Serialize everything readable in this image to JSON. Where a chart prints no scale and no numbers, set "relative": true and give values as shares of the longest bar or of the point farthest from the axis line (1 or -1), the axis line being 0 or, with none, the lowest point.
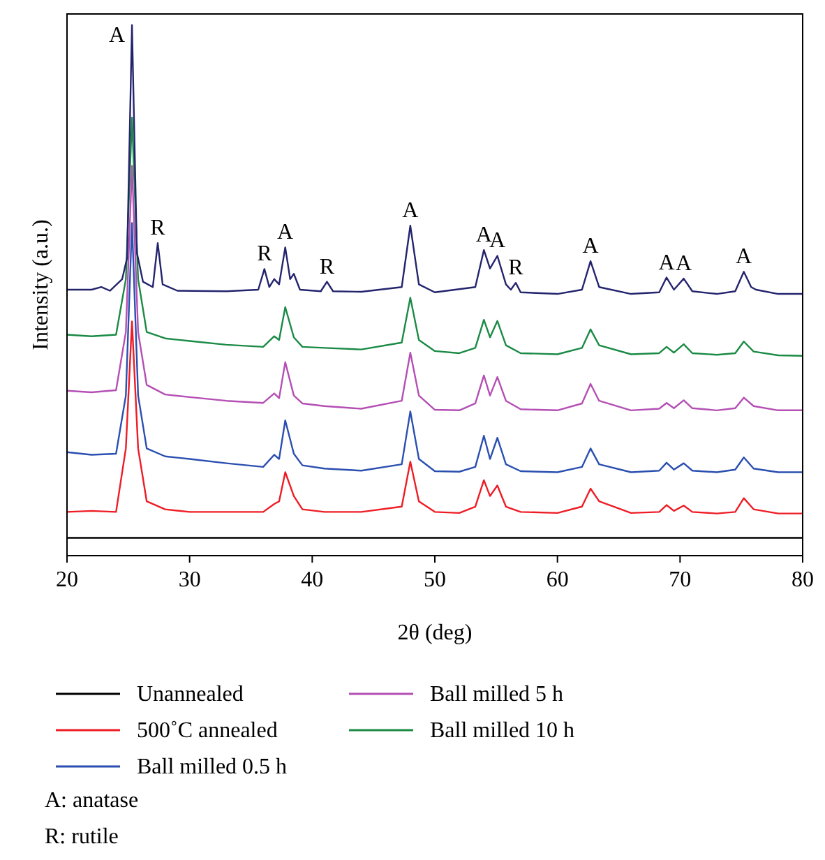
{
  "chart_data": {
    "type": "line",
    "relative": true,
    "xlabel": "2θ (deg)",
    "ylabel": "Intensity (a.u.)",
    "xlim": [
      20,
      80
    ],
    "xticks": [
      20,
      30,
      40,
      50,
      60,
      70,
      80
    ],
    "legend": "bottom",
    "marker": "none",
    "line_style": "solid",
    "grid": false,
    "x": [
      20,
      22,
      24,
      24.8,
      25.3,
      25.8,
      26.5,
      28,
      30,
      33,
      36,
      36.9,
      37.3,
      37.8,
      38.5,
      39.2,
      41,
      44,
      47.3,
      48.0,
      48.7,
      50,
      52,
      53.3,
      54.0,
      54.5,
      55.1,
      55.8,
      57,
      60,
      62.0,
      62.7,
      63.4,
      66,
      68.3,
      68.9,
      69.5,
      70.3,
      71,
      73,
      74.5,
      75.2,
      76,
      78,
      80
    ],
    "series": [
      {
        "name": "Unannealed",
        "color": "#000000",
        "x": [
          20,
          40,
          60,
          80
        ],
        "values": [
          0.031,
          0.031,
          0.031,
          0.031
        ]
      },
      {
        "name": "500˚C annealed",
        "color": "#ee1c25",
        "values": [
          0.08,
          0.082,
          0.08,
          0.2,
          0.44,
          0.2,
          0.1,
          0.085,
          0.08,
          0.08,
          0.08,
          0.095,
          0.1,
          0.155,
          0.11,
          0.085,
          0.08,
          0.08,
          0.09,
          0.175,
          0.1,
          0.08,
          0.078,
          0.09,
          0.14,
          0.11,
          0.13,
          0.09,
          0.08,
          0.078,
          0.09,
          0.124,
          0.1,
          0.078,
          0.08,
          0.093,
          0.082,
          0.092,
          0.08,
          0.077,
          0.08,
          0.106,
          0.085,
          0.077,
          0.077
        ]
      },
      {
        "name": "Ball milled 0.5 h",
        "color": "#2b4fb0",
        "values": [
          0.193,
          0.188,
          0.19,
          0.3,
          0.626,
          0.3,
          0.2,
          0.185,
          0.18,
          0.172,
          0.165,
          0.188,
          0.18,
          0.253,
          0.19,
          0.168,
          0.162,
          0.158,
          0.17,
          0.27,
          0.18,
          0.157,
          0.156,
          0.165,
          0.224,
          0.18,
          0.22,
          0.17,
          0.157,
          0.155,
          0.165,
          0.2,
          0.17,
          0.155,
          0.158,
          0.173,
          0.16,
          0.172,
          0.158,
          0.155,
          0.16,
          0.183,
          0.162,
          0.155,
          0.155
        ]
      },
      {
        "name": "Ball milled 5 h",
        "color": "#b44fb4",
        "values": [
          0.309,
          0.306,
          0.31,
          0.42,
          0.734,
          0.42,
          0.32,
          0.302,
          0.297,
          0.29,
          0.286,
          0.304,
          0.295,
          0.363,
          0.3,
          0.285,
          0.28,
          0.275,
          0.29,
          0.381,
          0.3,
          0.273,
          0.272,
          0.285,
          0.338,
          0.3,
          0.335,
          0.29,
          0.274,
          0.272,
          0.285,
          0.322,
          0.29,
          0.272,
          0.275,
          0.286,
          0.276,
          0.291,
          0.276,
          0.272,
          0.276,
          0.296,
          0.28,
          0.272,
          0.272
        ]
      },
      {
        "name": "Ball milled 10 h",
        "color": "#1a8a45",
        "values": [
          0.415,
          0.412,
          0.415,
          0.52,
          0.825,
          0.52,
          0.42,
          0.408,
          0.403,
          0.396,
          0.392,
          0.412,
          0.405,
          0.467,
          0.41,
          0.392,
          0.39,
          0.387,
          0.4,
          0.485,
          0.405,
          0.384,
          0.38,
          0.39,
          0.443,
          0.41,
          0.441,
          0.395,
          0.38,
          0.378,
          0.39,
          0.425,
          0.395,
          0.378,
          0.38,
          0.392,
          0.381,
          0.397,
          0.38,
          0.377,
          0.38,
          0.402,
          0.383,
          0.376,
          0.375
        ]
      },
      {
        "color": "#24246e",
        "x": [
          20,
          22,
          22.8,
          23.5,
          24.5,
          24.9,
          25.3,
          25.7,
          26.2,
          27,
          27.4,
          27.8,
          29,
          33,
          35.6,
          36.1,
          36.5,
          36.9,
          37.3,
          37.8,
          38.2,
          38.5,
          39,
          40.7,
          41.2,
          41.7,
          44,
          47.3,
          48.0,
          48.7,
          50,
          53.3,
          54.0,
          54.5,
          55.1,
          55.8,
          56.2,
          56.6,
          57,
          60,
          62.0,
          62.7,
          63.4,
          66,
          68.3,
          68.9,
          69.5,
          70.3,
          71,
          73,
          74.5,
          75.2,
          75.8,
          76.2,
          78,
          80
        ],
        "values": [
          0.5,
          0.5,
          0.505,
          0.498,
          0.52,
          0.56,
          1.0,
          0.57,
          0.515,
          0.505,
          0.588,
          0.51,
          0.498,
          0.497,
          0.5,
          0.539,
          0.505,
          0.52,
          0.51,
          0.58,
          0.52,
          0.53,
          0.5,
          0.497,
          0.515,
          0.497,
          0.496,
          0.505,
          0.621,
          0.51,
          0.495,
          0.505,
          0.575,
          0.54,
          0.564,
          0.51,
          0.5,
          0.513,
          0.495,
          0.492,
          0.5,
          0.554,
          0.505,
          0.492,
          0.495,
          0.523,
          0.5,
          0.521,
          0.497,
          0.492,
          0.497,
          0.534,
          0.505,
          0.5,
          0.492,
          0.492
        ]
      }
    ],
    "annotations": [
      {
        "text": "A",
        "x": 25.3,
        "y": 1.0
      },
      {
        "text": "R",
        "x": 27.4,
        "y": 0.588
      },
      {
        "text": "R",
        "x": 36.1,
        "y": 0.539
      },
      {
        "text": "A",
        "x": 37.8,
        "y": 0.58
      },
      {
        "text": "R",
        "x": 41.2,
        "y": 0.515
      },
      {
        "text": "A",
        "x": 48.0,
        "y": 0.621
      },
      {
        "text": "A",
        "x": 54.0,
        "y": 0.575
      },
      {
        "text": "A",
        "x": 55.1,
        "y": 0.564
      },
      {
        "text": "R",
        "x": 56.6,
        "y": 0.513
      },
      {
        "text": "A",
        "x": 62.7,
        "y": 0.554
      },
      {
        "text": "A",
        "x": 68.9,
        "y": 0.523
      },
      {
        "text": "A",
        "x": 70.3,
        "y": 0.521
      },
      {
        "text": "A",
        "x": 75.2,
        "y": 0.534
      },
      "A: anatase",
      "R: rutile"
    ]
  }
}
